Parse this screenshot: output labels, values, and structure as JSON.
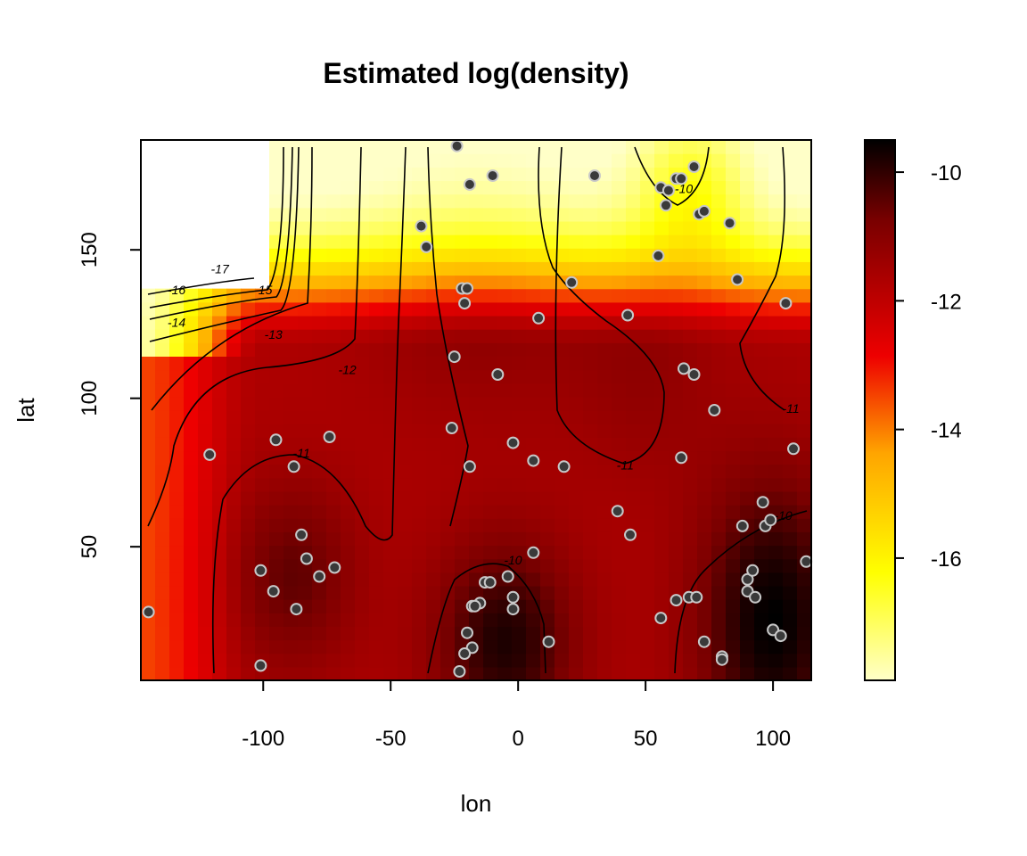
{
  "chart_data": {
    "type": "heatmap",
    "title": "Estimated log(density)",
    "xlabel": "lon",
    "ylabel": "lat",
    "xlim": [
      -148,
      115
    ],
    "ylim": [
      5,
      187
    ],
    "x_ticks": [
      -100,
      -50,
      0,
      50,
      100
    ],
    "y_ticks": [
      50,
      100,
      150
    ],
    "colorbar": {
      "min": -17.9,
      "max": -9.5,
      "ticks": [
        -10,
        -12,
        -14,
        -16
      ],
      "colors": [
        "#ffffc8",
        "#ffff00",
        "#ffa500",
        "#ee0000",
        "#7a0000",
        "#000000"
      ]
    },
    "missing_region": {
      "xmin": -148,
      "xmax": -96,
      "ymin": 138,
      "ymax": 187
    },
    "contour_labels": [
      {
        "text": "-17",
        "x": -117,
        "y": 143
      },
      {
        "text": "-16",
        "x": -134,
        "y": 136
      },
      {
        "text": "-15",
        "x": -100,
        "y": 136
      },
      {
        "text": "-14",
        "x": -134,
        "y": 125
      },
      {
        "text": "-13",
        "x": -96,
        "y": 121
      },
      {
        "text": "-12",
        "x": -67,
        "y": 109
      },
      {
        "text": "-11",
        "x": -85,
        "y": 81
      },
      {
        "text": "-11",
        "x": 42,
        "y": 77
      },
      {
        "text": "-11",
        "x": 107,
        "y": 96
      },
      {
        "text": "-10",
        "x": -2,
        "y": 45
      },
      {
        "text": "-10",
        "x": 65,
        "y": 170
      },
      {
        "text": "-10",
        "x": 104,
        "y": 60
      }
    ],
    "points": [
      [
        -24,
        185
      ],
      [
        -19,
        172
      ],
      [
        -10,
        175
      ],
      [
        30,
        175
      ],
      [
        56,
        171
      ],
      [
        59,
        170
      ],
      [
        62,
        174
      ],
      [
        64,
        174
      ],
      [
        69,
        178
      ],
      [
        58,
        165
      ],
      [
        71,
        162
      ],
      [
        73,
        163
      ],
      [
        83,
        159
      ],
      [
        -38,
        158
      ],
      [
        -36,
        151
      ],
      [
        55,
        148
      ],
      [
        -22,
        137
      ],
      [
        -20,
        137
      ],
      [
        21,
        139
      ],
      [
        86,
        140
      ],
      [
        -21,
        132
      ],
      [
        8,
        127
      ],
      [
        43,
        128
      ],
      [
        105,
        132
      ],
      [
        -25,
        114
      ],
      [
        -8,
        108
      ],
      [
        65,
        110
      ],
      [
        69,
        108
      ],
      [
        77,
        96
      ],
      [
        -26,
        90
      ],
      [
        -95,
        86
      ],
      [
        -74,
        87
      ],
      [
        -2,
        85
      ],
      [
        -121,
        81
      ],
      [
        6,
        79
      ],
      [
        18,
        77
      ],
      [
        64,
        80
      ],
      [
        -19,
        77
      ],
      [
        -88,
        77
      ],
      [
        108,
        83
      ],
      [
        39,
        62
      ],
      [
        44,
        54
      ],
      [
        96,
        65
      ],
      [
        88,
        57
      ],
      [
        97,
        57
      ],
      [
        99,
        59
      ],
      [
        -85,
        54
      ],
      [
        -83,
        46
      ],
      [
        6,
        48
      ],
      [
        -101,
        42
      ],
      [
        -72,
        43
      ],
      [
        -78,
        40
      ],
      [
        -4,
        40
      ],
      [
        90,
        39
      ],
      [
        92,
        42
      ],
      [
        -96,
        35
      ],
      [
        -13,
        38
      ],
      [
        -11,
        38
      ],
      [
        -2,
        33
      ],
      [
        -2,
        29
      ],
      [
        90,
        35
      ],
      [
        93,
        33
      ],
      [
        -15,
        31
      ],
      [
        -18,
        30
      ],
      [
        -17,
        30
      ],
      [
        -145,
        28
      ],
      [
        -87,
        29
      ],
      [
        56,
        26
      ],
      [
        62,
        32
      ],
      [
        67,
        33
      ],
      [
        70,
        33
      ],
      [
        -20,
        21
      ],
      [
        12,
        18
      ],
      [
        73,
        18
      ],
      [
        -18,
        16
      ],
      [
        -21,
        14
      ],
      [
        80,
        13
      ],
      [
        80,
        12
      ],
      [
        -23,
        8
      ],
      [
        -101,
        10
      ],
      [
        100,
        22
      ],
      [
        103,
        20
      ],
      [
        113,
        45
      ]
    ]
  }
}
